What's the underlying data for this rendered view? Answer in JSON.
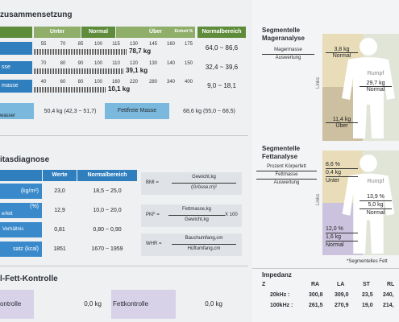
{
  "sections": {
    "body_comp_title": "zusammensetzung",
    "obesity_title": "itasdiagnose",
    "control_title": "l-Fett-Kontrolle"
  },
  "body_comp": {
    "headers": {
      "unter": "Unter",
      "normal": "Normal",
      "uber": "Über",
      "unit": "Einheit %",
      "normalbereich": "Normalbereich"
    },
    "rows": [
      {
        "label": "",
        "scale": [
          "55",
          "70",
          "85",
          "100",
          "115",
          "130",
          "145",
          "160",
          "175"
        ],
        "value": "78,7 kg",
        "fill": 0.58,
        "range": "64,0 ~ 86,6"
      },
      {
        "label": "sse",
        "scale": [
          "70",
          "80",
          "90",
          "100",
          "110",
          "120",
          "130",
          "140",
          "150"
        ],
        "value": "39,1 kg",
        "fill": 0.56,
        "range": "32,4 ~ 39,6"
      },
      {
        "label": "masse",
        "scale": [
          "40",
          "60",
          "80",
          "100",
          "160",
          "220",
          "280",
          "340",
          "400"
        ],
        "value": "10,1 kg",
        "fill": 0.45,
        "range": "9,0 ~ 18,1"
      }
    ],
    "water_label": "wasser",
    "water_value": "50,4 kg (42,3 ~ 51,7)",
    "ffm_label": "Fettfreie Masse",
    "ffm_value": "68,6 kg (55,0 ~ 68,5)"
  },
  "obesity": {
    "headers": {
      "werte": "Werte",
      "normal": "Normalbereich"
    },
    "rows": [
      {
        "label": "(kg/m²)",
        "value": "23,0",
        "range": "18,5 ~ 25,0"
      },
      {
        "label": "(%)",
        "sub": "erfett",
        "value": "12,9",
        "range": "10,0 ~ 20,0"
      },
      {
        "label": "Verhältnis",
        "value": "0,81",
        "range": "0,80 ~ 0,90"
      },
      {
        "label": "satz   (kcal)",
        "value": "1851",
        "range": "1670 ~ 1959"
      }
    ],
    "formulas": [
      {
        "lab": "BMI =",
        "num": "Gewicht,kg",
        "den": "(Grösse,m)²",
        "extra": ""
      },
      {
        "lab": "PKF =",
        "num": "Fettmasse,kg",
        "den": "Gewicht,kg",
        "extra": "X 100"
      },
      {
        "lab": "WHR =",
        "num": "Bauchumfang,cm",
        "den": "Hüftumfang,cm",
        "extra": ""
      }
    ]
  },
  "control": {
    "muscle_label": "ontrolle",
    "muscle_value": "0,0 kg",
    "fat_label": "Fettkontrolle",
    "fat_value": "0,0 kg"
  },
  "segment_lean": {
    "title1": "Segmentelle",
    "title2": "Mageranalyse",
    "legend1": "Magermasse",
    "legend2": "Auswertung",
    "left_arm_val": "3,8 kg",
    "left_arm_eval": "Normal",
    "trunk_lab": "Rumpf",
    "trunk_val": "29,7 kg",
    "trunk_eval": "Normal",
    "left_leg_val": "11,4 kg",
    "left_leg_eval": "Über",
    "side": "Links"
  },
  "segment_fat": {
    "title1": "Segmentelle",
    "title2": "Fettanalyse",
    "legend1": "Prozent Körperfett",
    "legend2": "Fettmasse",
    "legend3": "Auswertung",
    "left_arm_pct": "8,6 %",
    "left_arm_val": "0,4 kg",
    "left_arm_eval": "Unter",
    "trunk_lab": "Rumpf",
    "trunk_pct": "13,9 %",
    "trunk_val": "5,0 kg",
    "trunk_eval": "Normal",
    "left_leg_pct": "12,0 %",
    "left_leg_val": "1,6 kg",
    "left_leg_eval": "Normal",
    "side": "Links",
    "note": "*Segmentelles Fett"
  },
  "impedance": {
    "title": "Impedanz",
    "z": "Z",
    "cols": [
      "RA",
      "LA",
      "ST",
      "RL"
    ],
    "rows": [
      {
        "freq": "20kHz :",
        "vals": [
          "300,8",
          "309,0",
          "23,5",
          "240,"
        ]
      },
      {
        "freq": "100kHz :",
        "vals": [
          "261,5",
          "270,9",
          "19,0",
          "214,"
        ]
      }
    ]
  }
}
